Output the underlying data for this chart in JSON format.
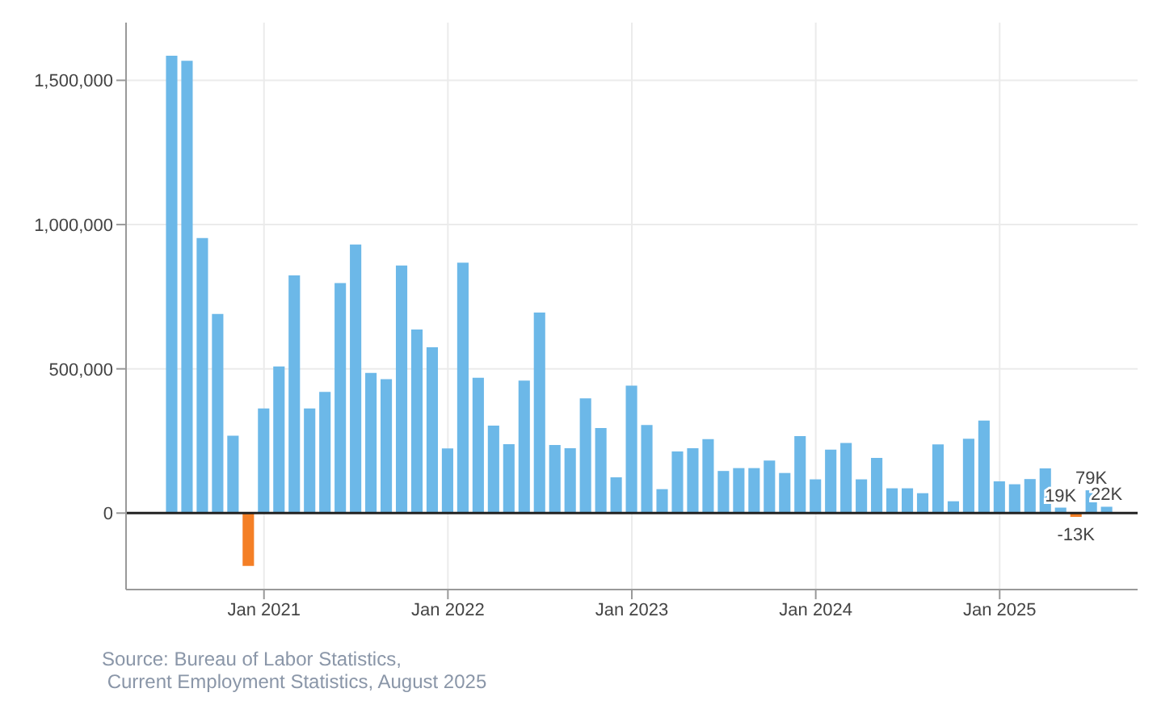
{
  "chart_data": {
    "type": "bar",
    "x": [
      "2020-07",
      "2020-08",
      "2020-09",
      "2020-10",
      "2020-11",
      "2020-12",
      "2021-01",
      "2021-02",
      "2021-03",
      "2021-04",
      "2021-05",
      "2021-06",
      "2021-07",
      "2021-08",
      "2021-09",
      "2021-10",
      "2021-11",
      "2021-12",
      "2022-01",
      "2022-02",
      "2022-03",
      "2022-04",
      "2022-05",
      "2022-06",
      "2022-07",
      "2022-08",
      "2022-09",
      "2022-10",
      "2022-11",
      "2022-12",
      "2023-01",
      "2023-02",
      "2023-03",
      "2023-04",
      "2023-05",
      "2023-06",
      "2023-07",
      "2023-08",
      "2023-09",
      "2023-10",
      "2023-11",
      "2023-12",
      "2024-01",
      "2024-02",
      "2024-03",
      "2024-04",
      "2024-05",
      "2024-06",
      "2024-07",
      "2024-08",
      "2024-09",
      "2024-10",
      "2024-11",
      "2024-12",
      "2025-01",
      "2025-02",
      "2025-03",
      "2025-04",
      "2025-05",
      "2025-06",
      "2025-07",
      "2025-08"
    ],
    "values": [
      1585000,
      1568000,
      953000,
      690000,
      268000,
      -183000,
      363000,
      508000,
      824000,
      363000,
      420000,
      797000,
      931000,
      486000,
      464000,
      858000,
      636000,
      575000,
      224000,
      868000,
      469000,
      303000,
      239000,
      459000,
      695000,
      236000,
      225000,
      398000,
      295000,
      124000,
      442000,
      305000,
      83000,
      214000,
      225000,
      256000,
      146000,
      156000,
      156000,
      182000,
      139000,
      267000,
      117000,
      220000,
      243000,
      117000,
      191000,
      86000,
      86000,
      69000,
      238000,
      41000,
      258000,
      321000,
      110000,
      100000,
      118000,
      155000,
      19000,
      -13000,
      79000,
      22000
    ],
    "colors": [
      "#6cb8e8",
      "#6cb8e8",
      "#6cb8e8",
      "#6cb8e8",
      "#6cb8e8",
      "#f47f26",
      "#6cb8e8",
      "#6cb8e8",
      "#6cb8e8",
      "#6cb8e8",
      "#6cb8e8",
      "#6cb8e8",
      "#6cb8e8",
      "#6cb8e8",
      "#6cb8e8",
      "#6cb8e8",
      "#6cb8e8",
      "#6cb8e8",
      "#6cb8e8",
      "#6cb8e8",
      "#6cb8e8",
      "#6cb8e8",
      "#6cb8e8",
      "#6cb8e8",
      "#6cb8e8",
      "#6cb8e8",
      "#6cb8e8",
      "#6cb8e8",
      "#6cb8e8",
      "#6cb8e8",
      "#6cb8e8",
      "#6cb8e8",
      "#6cb8e8",
      "#6cb8e8",
      "#6cb8e8",
      "#6cb8e8",
      "#6cb8e8",
      "#6cb8e8",
      "#6cb8e8",
      "#6cb8e8",
      "#6cb8e8",
      "#6cb8e8",
      "#6cb8e8",
      "#6cb8e8",
      "#6cb8e8",
      "#6cb8e8",
      "#6cb8e8",
      "#6cb8e8",
      "#6cb8e8",
      "#6cb8e8",
      "#6cb8e8",
      "#6cb8e8",
      "#6cb8e8",
      "#6cb8e8",
      "#6cb8e8",
      "#6cb8e8",
      "#6cb8e8",
      "#6cb8e8",
      "#6cb8e8",
      "#f47f26",
      "#6cb8e8",
      "#6cb8e8"
    ],
    "value_labels": [
      null,
      null,
      null,
      null,
      null,
      null,
      null,
      null,
      null,
      null,
      null,
      null,
      null,
      null,
      null,
      null,
      null,
      null,
      null,
      null,
      null,
      null,
      null,
      null,
      null,
      null,
      null,
      null,
      null,
      null,
      null,
      null,
      null,
      null,
      null,
      null,
      null,
      null,
      null,
      null,
      null,
      null,
      null,
      null,
      null,
      null,
      null,
      null,
      null,
      null,
      null,
      null,
      null,
      null,
      null,
      null,
      null,
      null,
      "19K",
      "-13K",
      "79K",
      "22K"
    ],
    "xlim": [
      "2020-04",
      "2025-10"
    ],
    "xticks": [
      {
        "value": "2021-01",
        "label": "Jan 2021"
      },
      {
        "value": "2022-01",
        "label": "Jan 2022"
      },
      {
        "value": "2023-01",
        "label": "Jan 2023"
      },
      {
        "value": "2024-01",
        "label": "Jan 2024"
      },
      {
        "value": "2025-01",
        "label": "Jan 2025"
      }
    ],
    "ylim": [
      -265000,
      1700000
    ],
    "yticks": [
      {
        "value": 0,
        "label": "0"
      },
      {
        "value": 500000,
        "label": "500,000"
      },
      {
        "value": 1000000,
        "label": "1,000,000"
      },
      {
        "value": 1500000,
        "label": "1,500,000"
      }
    ],
    "ref_lines": [
      {
        "axis": "y",
        "value": 0,
        "label": null,
        "color": "#222222"
      }
    ],
    "grid": true,
    "annotations": [
      "Source: Bureau of Labor Statistics,\n Current Employment Statistics, August 2025"
    ]
  }
}
